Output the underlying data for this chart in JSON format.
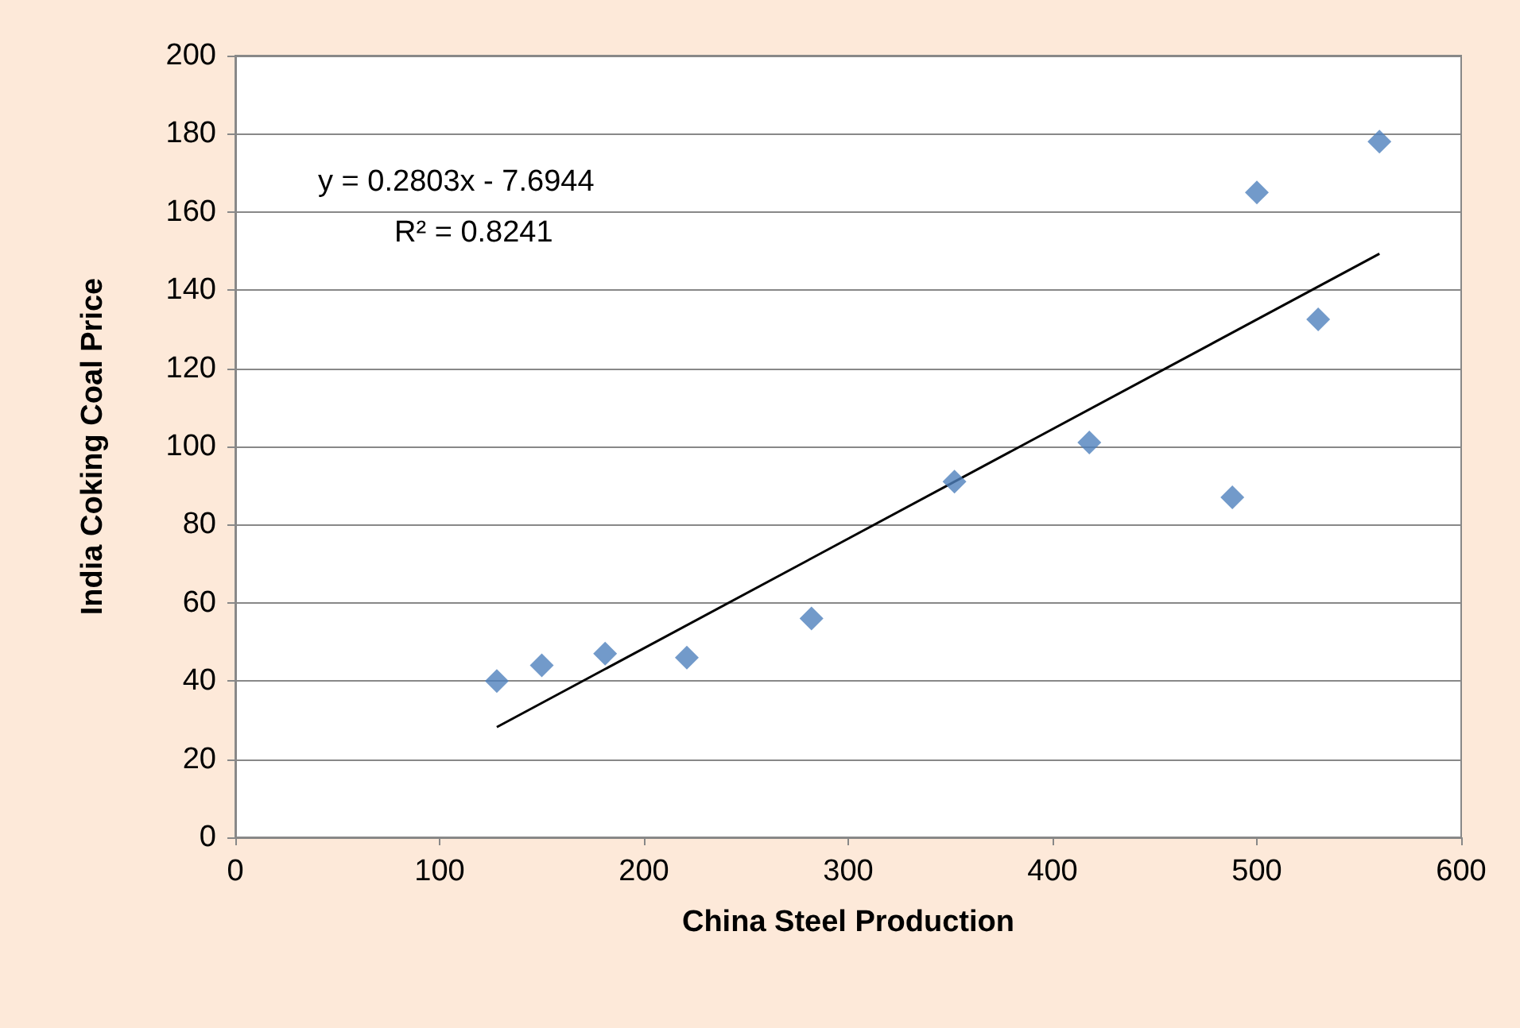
{
  "chart_data": {
    "type": "scatter",
    "xlabel": "China Steel Production",
    "ylabel": "India Coking Coal Price",
    "xlim": [
      0,
      600
    ],
    "xticks": [
      0,
      100,
      200,
      300,
      400,
      500,
      600
    ],
    "ylim": [
      0,
      200
    ],
    "yticks": [
      0,
      20,
      40,
      60,
      80,
      100,
      120,
      140,
      160,
      180,
      200
    ],
    "grid": "y",
    "marker": "diamond",
    "annotations": [
      "y = 0.2803x - 7.6944",
      "R² = 0.8241"
    ],
    "series": [
      {
        "color": "#4f81bd",
        "x": [
          128,
          150,
          181,
          221,
          282,
          352,
          418,
          488,
          500,
          530,
          560
        ],
        "values": [
          40,
          44,
          47,
          46,
          56,
          91,
          101,
          87,
          165,
          132.5,
          178
        ]
      },
      {
        "type": "line",
        "color": "#000000",
        "line_style": "solid",
        "marker": "none",
        "x": [
          128,
          560
        ],
        "values": [
          28.2,
          149.3
        ]
      }
    ]
  }
}
